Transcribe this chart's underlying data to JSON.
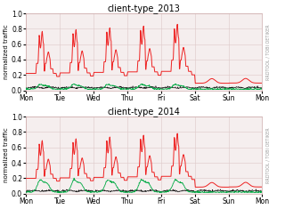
{
  "title_2013": "client-type_2013",
  "title_2014": "client-type_2014",
  "ylabel": "normalized traffic",
  "right_label": "RRDTOOL / TOBI OETIKER",
  "x_ticks": [
    "Mon",
    "Tue",
    "Wed",
    "Thu",
    "Fri",
    "Sat",
    "Sun",
    "Mon"
  ],
  "ylim": [
    0,
    1.0
  ],
  "yticks": [
    0.0,
    0.2,
    0.4,
    0.6,
    0.8,
    1.0
  ],
  "colors": {
    "red": "#ee2222",
    "green": "#00aa44",
    "dark": "#111111"
  },
  "background": "#f5eeee",
  "grid_color": "#ddc8c8"
}
